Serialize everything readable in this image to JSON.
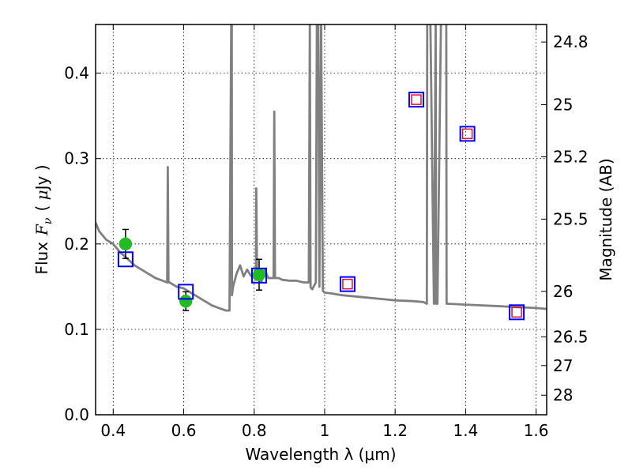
{
  "chart_data": {
    "type": "scatter",
    "title": "",
    "xlabel": "Wavelength  λ (μm)",
    "ylabel": "Flux  F_ν  ( μJy )",
    "ylabel_parts": {
      "prefix": "Flux",
      "symbol": "F",
      "subscript": "ν",
      "unit_open": "( ",
      "unit_mu": "μ",
      "unit_rest": "Jy )"
    },
    "y2label": "Magnitude (AB)",
    "xlim": [
      0.35,
      1.63
    ],
    "ylim": [
      0.0,
      0.457
    ],
    "grid": true,
    "x_ticks": [
      0.4,
      0.6,
      0.8,
      1.0,
      1.2,
      1.4,
      1.6
    ],
    "x_tick_labels": [
      "0.4",
      "0.6",
      "0.8",
      "1",
      "1.2",
      "1.4",
      "1.6"
    ],
    "y_ticks": [
      0.0,
      0.1,
      0.2,
      0.3,
      0.4
    ],
    "y_tick_labels": [
      "0.0",
      "0.1",
      "0.2",
      "0.3",
      "0.4"
    ],
    "y2_ticks": [
      24.8,
      25.0,
      25.2,
      25.5,
      26.0,
      26.5,
      27.0,
      28.0
    ],
    "y2_tick_labels": [
      "24.8",
      "25",
      "25.2",
      "25.5",
      "26",
      "26.5",
      "27",
      "28"
    ],
    "series": [
      {
        "name": "SED model",
        "style": "line",
        "color": "#808080",
        "x": [
          0.35,
          0.36,
          0.37,
          0.38,
          0.4,
          0.42,
          0.44,
          0.46,
          0.48,
          0.5,
          0.52,
          0.54,
          0.553,
          0.555,
          0.557,
          0.56,
          0.58,
          0.6,
          0.62,
          0.64,
          0.66,
          0.68,
          0.7,
          0.72,
          0.73,
          0.735,
          0.7355,
          0.7365,
          0.737,
          0.74,
          0.75,
          0.76,
          0.77,
          0.78,
          0.79,
          0.8,
          0.805,
          0.806,
          0.808,
          0.81,
          0.815,
          0.82,
          0.83,
          0.84,
          0.855,
          0.857,
          0.859,
          0.862,
          0.87,
          0.88,
          0.9,
          0.92,
          0.94,
          0.955,
          0.958,
          0.96,
          0.962,
          0.965,
          0.975,
          0.978,
          0.982,
          0.985,
          0.99,
          0.995,
          1.0,
          1.02,
          1.05,
          1.1,
          1.15,
          1.2,
          1.25,
          1.28,
          1.29,
          1.291,
          1.3,
          1.31,
          1.315,
          1.316,
          1.32,
          1.33,
          1.345,
          1.346,
          1.35,
          1.4,
          1.45,
          1.5,
          1.55,
          1.6,
          1.63
        ],
        "y": [
          0.225,
          0.215,
          0.21,
          0.205,
          0.2,
          0.19,
          0.183,
          0.175,
          0.17,
          0.165,
          0.16,
          0.157,
          0.155,
          0.29,
          0.155,
          0.155,
          0.15,
          0.148,
          0.143,
          0.138,
          0.133,
          0.128,
          0.125,
          0.122,
          0.122,
          0.46,
          0.46,
          0.46,
          0.14,
          0.15,
          0.165,
          0.175,
          0.162,
          0.17,
          0.163,
          0.16,
          0.158,
          0.265,
          0.17,
          0.158,
          0.165,
          0.155,
          0.17,
          0.16,
          0.16,
          0.355,
          0.16,
          0.16,
          0.16,
          0.158,
          0.157,
          0.157,
          0.155,
          0.155,
          0.46,
          0.15,
          0.148,
          0.147,
          0.155,
          0.46,
          0.46,
          0.15,
          0.46,
          0.145,
          0.143,
          0.142,
          0.14,
          0.138,
          0.136,
          0.134,
          0.133,
          0.132,
          0.13,
          0.46,
          0.46,
          0.13,
          0.46,
          0.13,
          0.13,
          0.46,
          0.46,
          0.13,
          0.13,
          0.129,
          0.128,
          0.127,
          0.126,
          0.125,
          0.124
        ]
      },
      {
        "name": "Observed photometry",
        "style": "marker-circle",
        "color": "#22bb22",
        "x": [
          0.435,
          0.606,
          0.814
        ],
        "y": [
          0.2,
          0.133,
          0.164
        ],
        "yerr": [
          0.017,
          0.011,
          0.018
        ]
      },
      {
        "name": "Model photometry",
        "style": "marker-open-square",
        "color": "#0000ff",
        "x": [
          0.435,
          0.606,
          0.814,
          1.065,
          1.26,
          1.405,
          1.545
        ],
        "y": [
          0.182,
          0.144,
          0.163,
          0.153,
          0.369,
          0.329,
          0.12
        ]
      },
      {
        "name": "Upper limits / predicted",
        "style": "marker-open-square-small",
        "color": "#dd1133",
        "x": [
          1.065,
          1.26,
          1.405,
          1.545
        ],
        "y": [
          0.153,
          0.369,
          0.329,
          0.12
        ]
      }
    ]
  }
}
